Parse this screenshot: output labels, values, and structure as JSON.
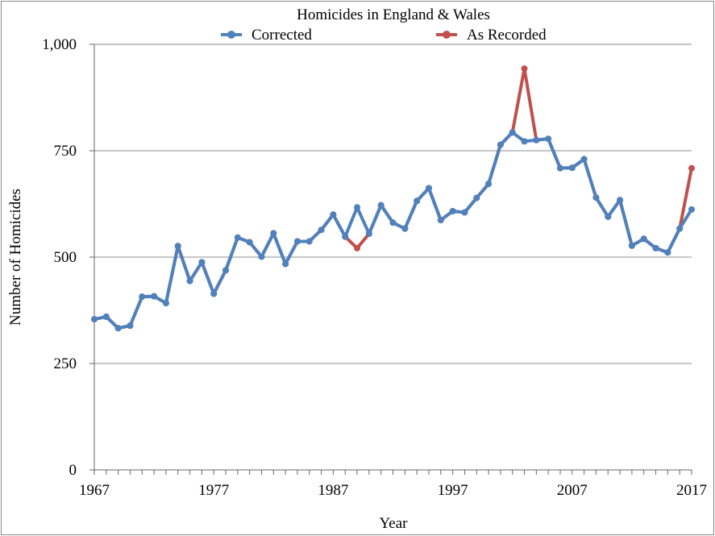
{
  "chart_data": {
    "type": "line",
    "title": "Homicides in England & Wales",
    "xlabel": "Year",
    "ylabel": "Number of Homicides",
    "xlim": [
      1967,
      2017
    ],
    "ylim": [
      0,
      1000
    ],
    "x_ticks": [
      "1967",
      "1977",
      "1987",
      "1997",
      "2007",
      "2017"
    ],
    "y_ticks": [
      "0",
      "250",
      "500",
      "750",
      "1,000"
    ],
    "grid": "horizontal",
    "legend_position": "top",
    "x": [
      1967,
      1968,
      1969,
      1970,
      1971,
      1972,
      1973,
      1974,
      1975,
      1976,
      1977,
      1978,
      1979,
      1980,
      1981,
      1982,
      1983,
      1984,
      1985,
      1986,
      1987,
      1988,
      1989,
      1990,
      1991,
      1992,
      1993,
      1994,
      1995,
      1996,
      1997,
      1998,
      1999,
      2000,
      2001,
      2002,
      2003,
      2004,
      2005,
      2006,
      2007,
      2008,
      2009,
      2010,
      2011,
      2012,
      2013,
      2014,
      2015,
      2016,
      2017
    ],
    "series": [
      {
        "name": "As Recorded",
        "color": "#c0504d",
        "values": [
          354,
          360,
          333,
          339,
          407,
          408,
          392,
          526,
          444,
          488,
          414,
          469,
          546,
          535,
          501,
          556,
          484,
          537,
          537,
          564,
          600,
          548,
          521,
          555,
          622,
          581,
          567,
          632,
          662,
          587,
          608,
          605,
          639,
          672,
          764,
          793,
          943,
          775,
          778,
          709,
          710,
          730,
          640,
          595,
          634,
          527,
          543,
          521,
          511,
          567,
          709
        ]
      },
      {
        "name": "Corrected",
        "color": "#4f81bd",
        "values": [
          354,
          360,
          333,
          339,
          407,
          408,
          392,
          526,
          444,
          488,
          414,
          469,
          546,
          535,
          501,
          556,
          484,
          537,
          537,
          564,
          600,
          548,
          617,
          555,
          622,
          581,
          567,
          632,
          662,
          587,
          608,
          605,
          639,
          672,
          764,
          793,
          772,
          775,
          778,
          709,
          710,
          730,
          640,
          595,
          634,
          527,
          543,
          521,
          511,
          567,
          612
        ]
      }
    ]
  }
}
